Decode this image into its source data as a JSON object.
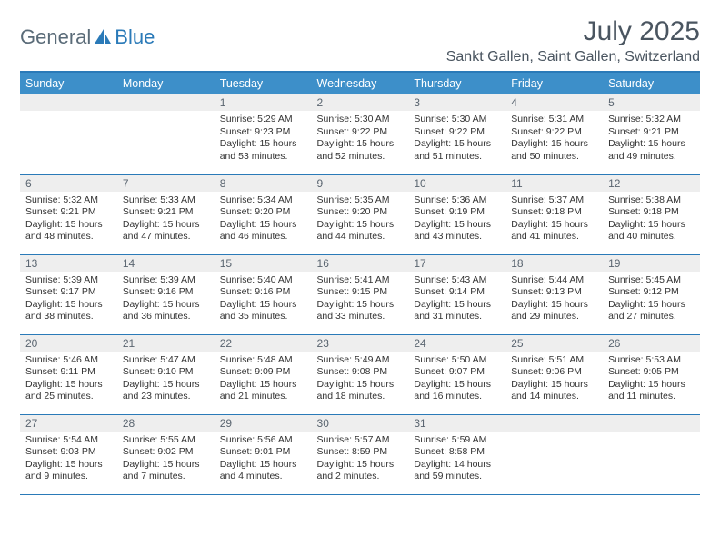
{
  "brand": {
    "part1": "General",
    "part2": "Blue"
  },
  "title": "July 2025",
  "location": "Sankt Gallen, Saint Gallen, Switzerland",
  "colors": {
    "header_bg": "#3d8fc9",
    "rule": "#2a7ab8",
    "daynum_bg": "#eeeeee",
    "text": "#333333",
    "muted": "#5a6b78"
  },
  "weekdays": [
    "Sunday",
    "Monday",
    "Tuesday",
    "Wednesday",
    "Thursday",
    "Friday",
    "Saturday"
  ],
  "weeks": [
    [
      null,
      null,
      {
        "n": "1",
        "sunrise": "Sunrise: 5:29 AM",
        "sunset": "Sunset: 9:23 PM",
        "day": "Daylight: 15 hours and 53 minutes."
      },
      {
        "n": "2",
        "sunrise": "Sunrise: 5:30 AM",
        "sunset": "Sunset: 9:22 PM",
        "day": "Daylight: 15 hours and 52 minutes."
      },
      {
        "n": "3",
        "sunrise": "Sunrise: 5:30 AM",
        "sunset": "Sunset: 9:22 PM",
        "day": "Daylight: 15 hours and 51 minutes."
      },
      {
        "n": "4",
        "sunrise": "Sunrise: 5:31 AM",
        "sunset": "Sunset: 9:22 PM",
        "day": "Daylight: 15 hours and 50 minutes."
      },
      {
        "n": "5",
        "sunrise": "Sunrise: 5:32 AM",
        "sunset": "Sunset: 9:21 PM",
        "day": "Daylight: 15 hours and 49 minutes."
      }
    ],
    [
      {
        "n": "6",
        "sunrise": "Sunrise: 5:32 AM",
        "sunset": "Sunset: 9:21 PM",
        "day": "Daylight: 15 hours and 48 minutes."
      },
      {
        "n": "7",
        "sunrise": "Sunrise: 5:33 AM",
        "sunset": "Sunset: 9:21 PM",
        "day": "Daylight: 15 hours and 47 minutes."
      },
      {
        "n": "8",
        "sunrise": "Sunrise: 5:34 AM",
        "sunset": "Sunset: 9:20 PM",
        "day": "Daylight: 15 hours and 46 minutes."
      },
      {
        "n": "9",
        "sunrise": "Sunrise: 5:35 AM",
        "sunset": "Sunset: 9:20 PM",
        "day": "Daylight: 15 hours and 44 minutes."
      },
      {
        "n": "10",
        "sunrise": "Sunrise: 5:36 AM",
        "sunset": "Sunset: 9:19 PM",
        "day": "Daylight: 15 hours and 43 minutes."
      },
      {
        "n": "11",
        "sunrise": "Sunrise: 5:37 AM",
        "sunset": "Sunset: 9:18 PM",
        "day": "Daylight: 15 hours and 41 minutes."
      },
      {
        "n": "12",
        "sunrise": "Sunrise: 5:38 AM",
        "sunset": "Sunset: 9:18 PM",
        "day": "Daylight: 15 hours and 40 minutes."
      }
    ],
    [
      {
        "n": "13",
        "sunrise": "Sunrise: 5:39 AM",
        "sunset": "Sunset: 9:17 PM",
        "day": "Daylight: 15 hours and 38 minutes."
      },
      {
        "n": "14",
        "sunrise": "Sunrise: 5:39 AM",
        "sunset": "Sunset: 9:16 PM",
        "day": "Daylight: 15 hours and 36 minutes."
      },
      {
        "n": "15",
        "sunrise": "Sunrise: 5:40 AM",
        "sunset": "Sunset: 9:16 PM",
        "day": "Daylight: 15 hours and 35 minutes."
      },
      {
        "n": "16",
        "sunrise": "Sunrise: 5:41 AM",
        "sunset": "Sunset: 9:15 PM",
        "day": "Daylight: 15 hours and 33 minutes."
      },
      {
        "n": "17",
        "sunrise": "Sunrise: 5:43 AM",
        "sunset": "Sunset: 9:14 PM",
        "day": "Daylight: 15 hours and 31 minutes."
      },
      {
        "n": "18",
        "sunrise": "Sunrise: 5:44 AM",
        "sunset": "Sunset: 9:13 PM",
        "day": "Daylight: 15 hours and 29 minutes."
      },
      {
        "n": "19",
        "sunrise": "Sunrise: 5:45 AM",
        "sunset": "Sunset: 9:12 PM",
        "day": "Daylight: 15 hours and 27 minutes."
      }
    ],
    [
      {
        "n": "20",
        "sunrise": "Sunrise: 5:46 AM",
        "sunset": "Sunset: 9:11 PM",
        "day": "Daylight: 15 hours and 25 minutes."
      },
      {
        "n": "21",
        "sunrise": "Sunrise: 5:47 AM",
        "sunset": "Sunset: 9:10 PM",
        "day": "Daylight: 15 hours and 23 minutes."
      },
      {
        "n": "22",
        "sunrise": "Sunrise: 5:48 AM",
        "sunset": "Sunset: 9:09 PM",
        "day": "Daylight: 15 hours and 21 minutes."
      },
      {
        "n": "23",
        "sunrise": "Sunrise: 5:49 AM",
        "sunset": "Sunset: 9:08 PM",
        "day": "Daylight: 15 hours and 18 minutes."
      },
      {
        "n": "24",
        "sunrise": "Sunrise: 5:50 AM",
        "sunset": "Sunset: 9:07 PM",
        "day": "Daylight: 15 hours and 16 minutes."
      },
      {
        "n": "25",
        "sunrise": "Sunrise: 5:51 AM",
        "sunset": "Sunset: 9:06 PM",
        "day": "Daylight: 15 hours and 14 minutes."
      },
      {
        "n": "26",
        "sunrise": "Sunrise: 5:53 AM",
        "sunset": "Sunset: 9:05 PM",
        "day": "Daylight: 15 hours and 11 minutes."
      }
    ],
    [
      {
        "n": "27",
        "sunrise": "Sunrise: 5:54 AM",
        "sunset": "Sunset: 9:03 PM",
        "day": "Daylight: 15 hours and 9 minutes."
      },
      {
        "n": "28",
        "sunrise": "Sunrise: 5:55 AM",
        "sunset": "Sunset: 9:02 PM",
        "day": "Daylight: 15 hours and 7 minutes."
      },
      {
        "n": "29",
        "sunrise": "Sunrise: 5:56 AM",
        "sunset": "Sunset: 9:01 PM",
        "day": "Daylight: 15 hours and 4 minutes."
      },
      {
        "n": "30",
        "sunrise": "Sunrise: 5:57 AM",
        "sunset": "Sunset: 8:59 PM",
        "day": "Daylight: 15 hours and 2 minutes."
      },
      {
        "n": "31",
        "sunrise": "Sunrise: 5:59 AM",
        "sunset": "Sunset: 8:58 PM",
        "day": "Daylight: 14 hours and 59 minutes."
      },
      null,
      null
    ]
  ]
}
